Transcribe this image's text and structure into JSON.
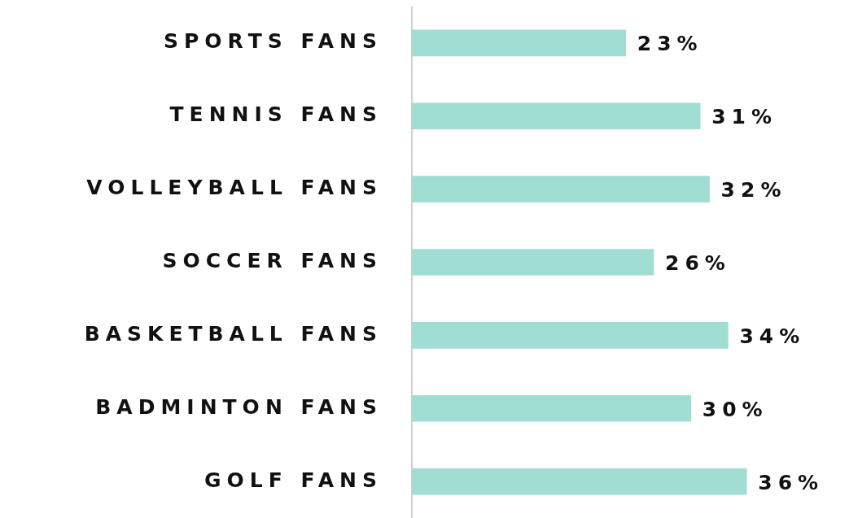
{
  "chart_data": {
    "type": "bar",
    "orientation": "horizontal",
    "categories": [
      "SPORTS FANS",
      "TENNIS FANS",
      "VOLLEYBALL FANS",
      "SOCCER FANS",
      "BASKETBALL FANS",
      "BADMINTON FANS",
      "GOLF FANS"
    ],
    "values": [
      23,
      31,
      32,
      26,
      34,
      30,
      36
    ],
    "color": "#a0ded4",
    "value_labels": [
      "23%",
      "31%",
      "32%",
      "26%",
      "34%",
      "30%",
      "36%"
    ],
    "legend": false,
    "tick_labels": "y"
  }
}
